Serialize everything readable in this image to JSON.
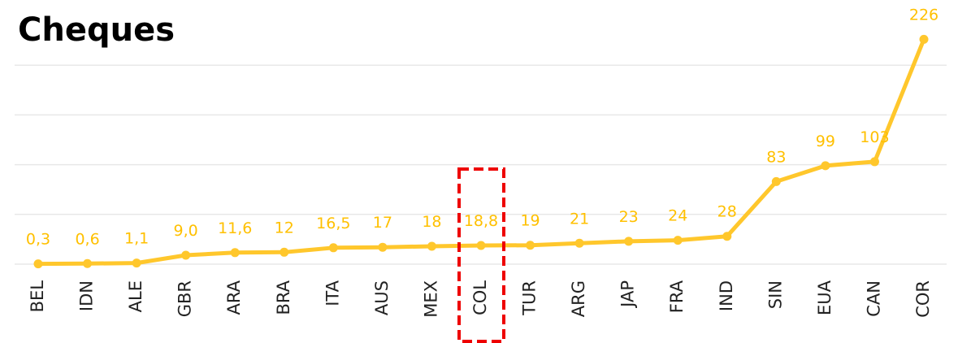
{
  "chart_data": {
    "type": "line",
    "title": "Cheques",
    "categories": [
      "BEL",
      "IDN",
      "ALE",
      "GBR",
      "ARA",
      "BRA",
      "ITA",
      "AUS",
      "MEX",
      "COL",
      "TUR",
      "ARG",
      "JAP",
      "FRA",
      "IND",
      "SIN",
      "EUA",
      "CAN",
      "COR"
    ],
    "series": [
      {
        "name": "Cheques",
        "color": "#FFC72C",
        "values": [
          0.3,
          0.6,
          1.1,
          9.0,
          11.6,
          12,
          16.5,
          17,
          18,
          18.8,
          19,
          21,
          23,
          24,
          28,
          83,
          99,
          103,
          226
        ],
        "value_labels": [
          "0,3",
          "0,6",
          "1,1",
          "9,0",
          "11,6",
          "12",
          "16,5",
          "17",
          "18",
          "18,8",
          "19",
          "21",
          "23",
          "24",
          "28",
          "83",
          "99",
          "103",
          "226"
        ]
      }
    ],
    "ylim": [
      0,
      250
    ],
    "yticks": [
      0,
      50,
      100,
      150,
      200
    ],
    "grid": true
  }
}
